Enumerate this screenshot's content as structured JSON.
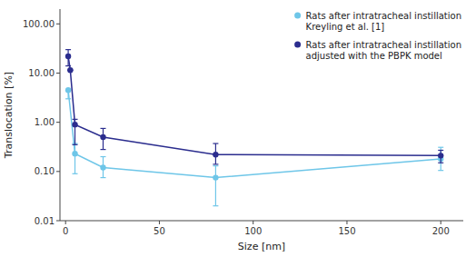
{
  "chart_data": {
    "type": "line",
    "x_label": "Size [nm]",
    "y_label": "Translocation [%]",
    "log": "y",
    "grid": false,
    "legend": "upper right",
    "xlim": [
      -3,
      212
    ],
    "xticks": [
      0,
      50,
      100,
      150,
      200
    ],
    "ylim": [
      0.01,
      200.0
    ],
    "yticks": [
      0.01,
      {
        "value": 0.1,
        "label": "0.10"
      },
      {
        "value": 1.0,
        "label": "1.00"
      },
      {
        "value": 10.0,
        "label": "10.00"
      },
      {
        "value": 100.0,
        "label": "100.00"
      }
    ],
    "series": [
      {
        "name": "Rats after intratracheal instillation\nKreyling et al. [1]",
        "color": "#6EC6E8",
        "marker": "circle",
        "x": [
          1.4,
          5,
          20,
          80,
          200
        ],
        "values": [
          4.5,
          0.23,
          0.12,
          0.075,
          0.18
        ],
        "yerr_lo": [
          1.5,
          0.14,
          0.045,
          0.055,
          0.075
        ],
        "yerr_hi": [
          0.0,
          0.14,
          0.08,
          0.055,
          0.13
        ]
      },
      {
        "name": "Rats after intratracheal instillation\nadjusted with the PBPK model",
        "color": "#2B2D8E",
        "marker": "circle",
        "x": [
          1.4,
          2.5,
          5,
          20,
          80,
          200
        ],
        "values": [
          22.0,
          11.5,
          0.9,
          0.5,
          0.22,
          0.21
        ],
        "yerr_lo": [
          8.0,
          0.0,
          0.55,
          0.22,
          0.08,
          0.06
        ],
        "yerr_hi": [
          8.0,
          0.0,
          0.25,
          0.25,
          0.15,
          0.06
        ]
      }
    ]
  }
}
